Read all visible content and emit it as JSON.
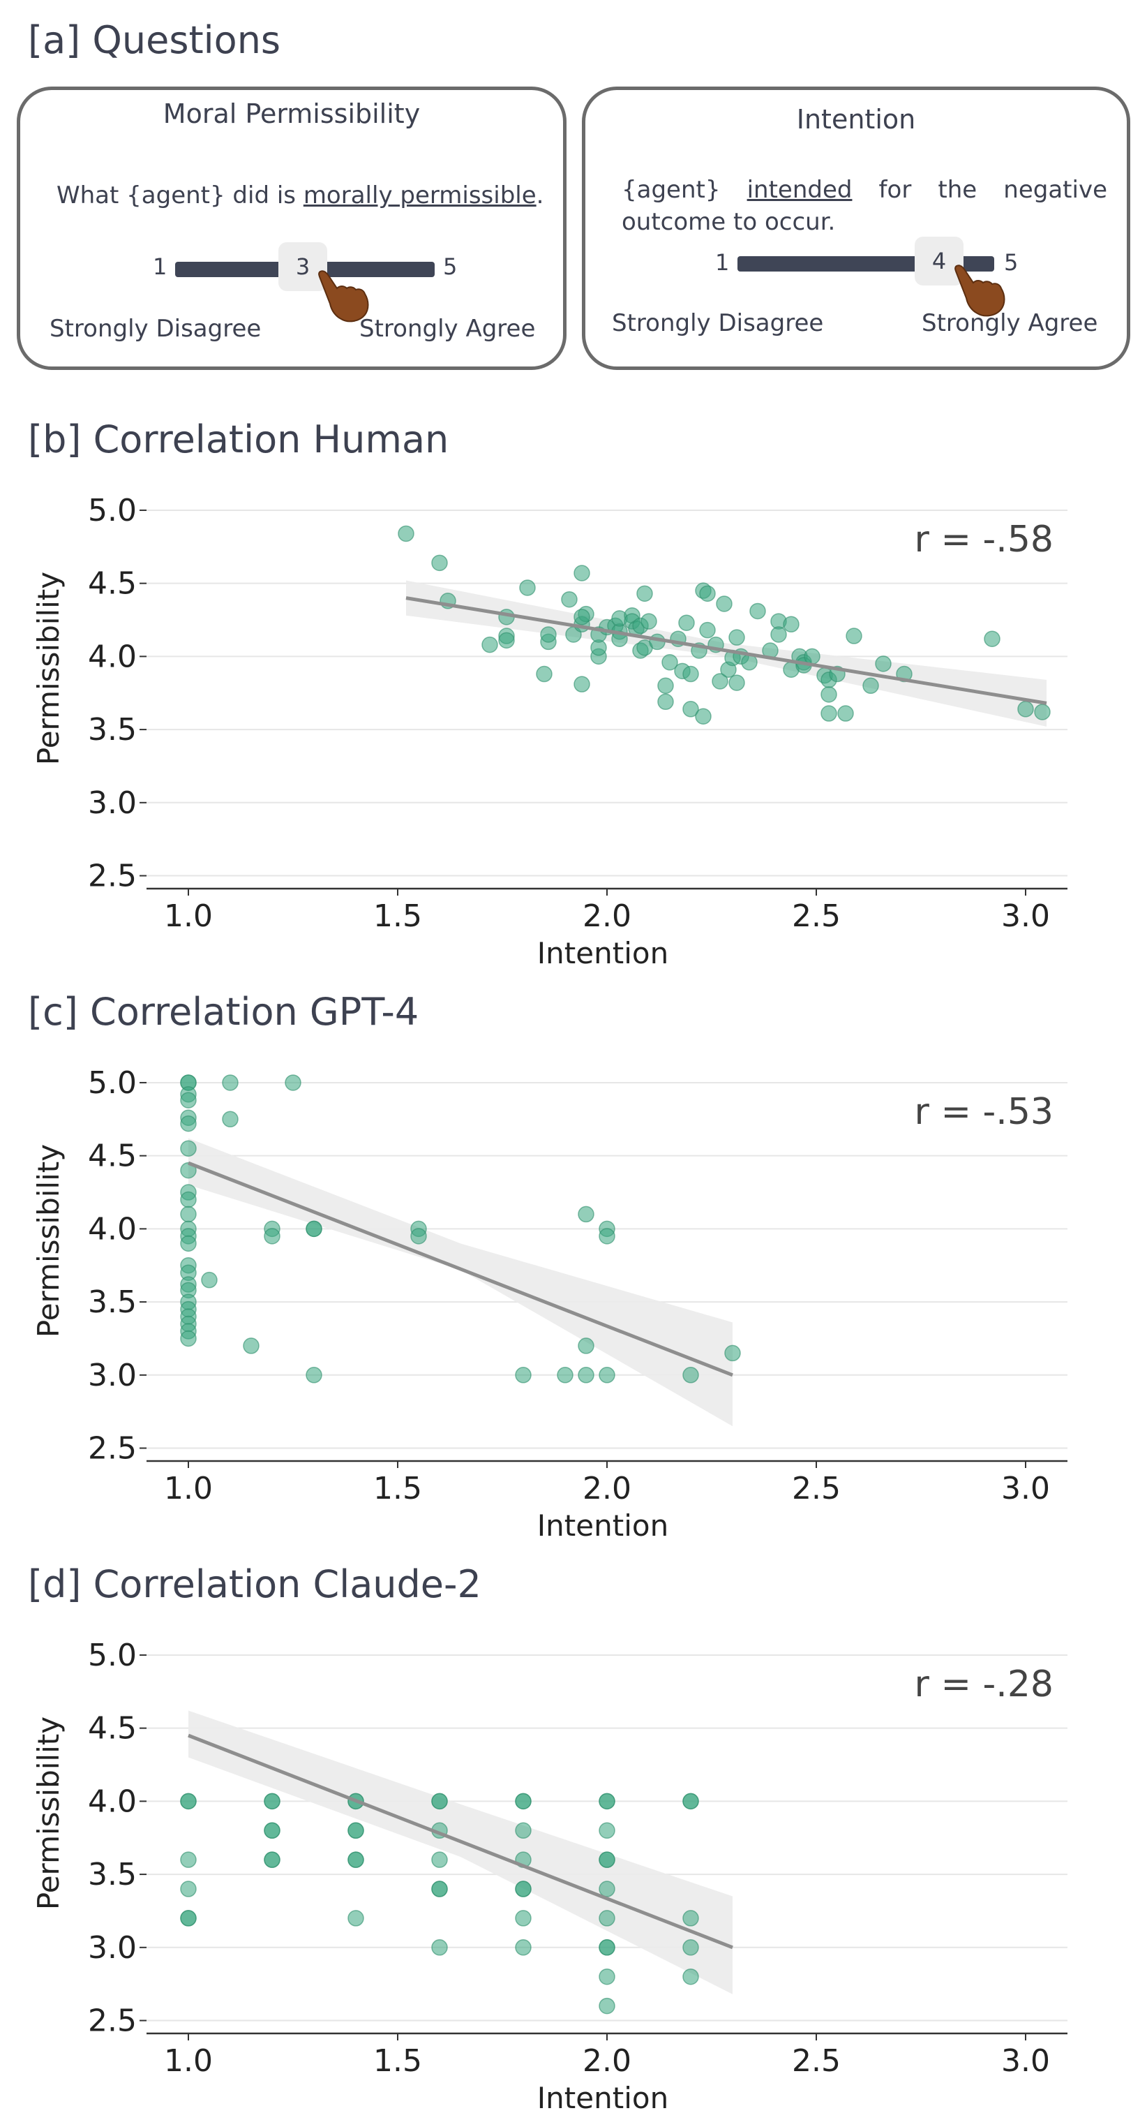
{
  "sections": {
    "a": "[a] Questions",
    "b": "[b] Correlation Human",
    "c": "[c] Correlation GPT-4",
    "d": "[d] Correlation Claude-2"
  },
  "questions": {
    "moral": {
      "title": "Moral Permissibility",
      "text_before": "What {agent} did is ",
      "text_underlined": "morally permissible",
      "text_after": ".",
      "scale_min": "1",
      "scale_max": "5",
      "selected": "3",
      "selected_value": 3,
      "left_anchor": "Strongly Disagree",
      "right_anchor": "Strongly Agree"
    },
    "intention": {
      "title": "Intention",
      "text_before": "{agent} ",
      "text_underlined": "intended",
      "text_after": " for the negative outcome to occur.",
      "scale_min": "1",
      "scale_max": "5",
      "selected": "4",
      "selected_value": 4,
      "left_anchor": "Strongly Disagree",
      "right_anchor": "Strongly Agree"
    }
  },
  "chart_data": [
    {
      "id": "human",
      "type": "scatter",
      "title": "",
      "xlabel": "Intention",
      "ylabel": "Permissibility",
      "xlim": [
        0.9,
        3.1
      ],
      "ylim": [
        2.45,
        5.1
      ],
      "xticks": [
        "1.0",
        "1.5",
        "2.0",
        "2.5",
        "3.0"
      ],
      "yticks": [
        "2.5",
        "3.0",
        "3.5",
        "4.0",
        "4.5",
        "5.0"
      ],
      "annotation": "r = -.58",
      "fit": {
        "x": [
          1.52,
          3.05
        ],
        "y": [
          4.4,
          3.68
        ],
        "ci_start": [
          4.28,
          4.52
        ],
        "ci_mid": [
          4.0,
          4.09
        ],
        "ci_end": [
          3.52,
          3.84
        ]
      },
      "points": [
        [
          1.52,
          4.84
        ],
        [
          1.6,
          4.64
        ],
        [
          1.62,
          4.38
        ],
        [
          1.72,
          4.08
        ],
        [
          1.76,
          4.14
        ],
        [
          1.76,
          4.11
        ],
        [
          1.76,
          4.27
        ],
        [
          1.81,
          4.47
        ],
        [
          1.85,
          3.88
        ],
        [
          1.86,
          4.1
        ],
        [
          1.86,
          4.15
        ],
        [
          1.91,
          4.39
        ],
        [
          1.92,
          4.15
        ],
        [
          1.94,
          4.57
        ],
        [
          1.94,
          4.22
        ],
        [
          1.95,
          4.29
        ],
        [
          1.94,
          4.27
        ],
        [
          1.94,
          3.81
        ],
        [
          1.98,
          4.0
        ],
        [
          1.98,
          4.06
        ],
        [
          1.98,
          4.15
        ],
        [
          2.0,
          4.2
        ],
        [
          2.02,
          4.21
        ],
        [
          2.03,
          4.17
        ],
        [
          2.03,
          4.12
        ],
        [
          2.03,
          4.26
        ],
        [
          2.06,
          4.28
        ],
        [
          2.06,
          4.24
        ],
        [
          2.07,
          4.19
        ],
        [
          2.08,
          4.21
        ],
        [
          2.08,
          4.04
        ],
        [
          2.09,
          4.06
        ],
        [
          2.09,
          4.43
        ],
        [
          2.1,
          4.24
        ],
        [
          2.12,
          4.1
        ],
        [
          2.14,
          3.8
        ],
        [
          2.14,
          3.69
        ],
        [
          2.15,
          3.96
        ],
        [
          2.17,
          4.12
        ],
        [
          2.18,
          3.9
        ],
        [
          2.19,
          4.23
        ],
        [
          2.2,
          3.64
        ],
        [
          2.2,
          3.88
        ],
        [
          2.22,
          4.04
        ],
        [
          2.23,
          4.45
        ],
        [
          2.23,
          3.59
        ],
        [
          2.24,
          4.43
        ],
        [
          2.24,
          4.18
        ],
        [
          2.26,
          4.08
        ],
        [
          2.27,
          3.83
        ],
        [
          2.28,
          4.36
        ],
        [
          2.29,
          3.91
        ],
        [
          2.3,
          3.99
        ],
        [
          2.31,
          3.82
        ],
        [
          2.31,
          4.13
        ],
        [
          2.32,
          4.0
        ],
        [
          2.34,
          3.96
        ],
        [
          2.36,
          4.31
        ],
        [
          2.39,
          4.04
        ],
        [
          2.41,
          4.24
        ],
        [
          2.41,
          4.15
        ],
        [
          2.44,
          3.91
        ],
        [
          2.44,
          4.22
        ],
        [
          2.46,
          4.0
        ],
        [
          2.47,
          3.96
        ],
        [
          2.47,
          3.94
        ],
        [
          2.49,
          4.0
        ],
        [
          2.52,
          3.87
        ],
        [
          2.53,
          3.84
        ],
        [
          2.53,
          3.74
        ],
        [
          2.53,
          3.61
        ],
        [
          2.55,
          3.88
        ],
        [
          2.57,
          3.61
        ],
        [
          2.59,
          4.14
        ],
        [
          2.63,
          3.8
        ],
        [
          2.66,
          3.95
        ],
        [
          2.71,
          3.88
        ],
        [
          2.92,
          4.12
        ],
        [
          3.0,
          3.64
        ],
        [
          3.04,
          3.62
        ]
      ]
    },
    {
      "id": "gpt4",
      "type": "scatter",
      "title": "",
      "xlabel": "Intention",
      "ylabel": "Permissibility",
      "xlim": [
        0.9,
        3.1
      ],
      "ylim": [
        2.45,
        5.1
      ],
      "xticks": [
        "1.0",
        "1.5",
        "2.0",
        "2.5",
        "3.0"
      ],
      "yticks": [
        "2.5",
        "3.0",
        "3.5",
        "4.0",
        "4.5",
        "5.0"
      ],
      "annotation": "r = -.53",
      "fit": {
        "x": [
          1.0,
          2.3
        ],
        "y": [
          4.45,
          3.0
        ],
        "ci_start": [
          4.3,
          4.62
        ],
        "ci_mid": [
          3.72,
          3.9
        ],
        "ci_end": [
          2.65,
          3.36
        ]
      },
      "points": [
        [
          1.0,
          5.0
        ],
        [
          1.0,
          5.0
        ],
        [
          1.0,
          4.92
        ],
        [
          1.0,
          4.88
        ],
        [
          1.0,
          4.76
        ],
        [
          1.0,
          4.72
        ],
        [
          1.0,
          4.55
        ],
        [
          1.0,
          4.4
        ],
        [
          1.0,
          4.25
        ],
        [
          1.0,
          4.2
        ],
        [
          1.0,
          4.1
        ],
        [
          1.0,
          4.0
        ],
        [
          1.0,
          3.95
        ],
        [
          1.0,
          3.9
        ],
        [
          1.0,
          3.75
        ],
        [
          1.0,
          3.7
        ],
        [
          1.0,
          3.62
        ],
        [
          1.0,
          3.58
        ],
        [
          1.0,
          3.5
        ],
        [
          1.0,
          3.45
        ],
        [
          1.0,
          3.4
        ],
        [
          1.0,
          3.35
        ],
        [
          1.0,
          3.3
        ],
        [
          1.0,
          3.25
        ],
        [
          1.05,
          3.65
        ],
        [
          1.1,
          5.0
        ],
        [
          1.1,
          4.75
        ],
        [
          1.15,
          3.2
        ],
        [
          1.2,
          4.0
        ],
        [
          1.2,
          3.95
        ],
        [
          1.25,
          5.0
        ],
        [
          1.3,
          4.0
        ],
        [
          1.3,
          4.0
        ],
        [
          1.3,
          3.0
        ],
        [
          1.55,
          4.0
        ],
        [
          1.55,
          3.95
        ],
        [
          1.8,
          3.0
        ],
        [
          1.9,
          3.0
        ],
        [
          1.95,
          4.1
        ],
        [
          1.95,
          3.2
        ],
        [
          1.95,
          3.0
        ],
        [
          2.0,
          4.0
        ],
        [
          2.0,
          3.95
        ],
        [
          2.0,
          3.0
        ],
        [
          2.2,
          3.0
        ],
        [
          2.3,
          3.15
        ]
      ]
    },
    {
      "id": "claude2",
      "type": "scatter",
      "title": "",
      "xlabel": "Intention",
      "ylabel": "Permissibility",
      "xlim": [
        0.9,
        3.1
      ],
      "ylim": [
        2.45,
        5.1
      ],
      "xticks": [
        "1.0",
        "1.5",
        "2.0",
        "2.5",
        "3.0"
      ],
      "yticks": [
        "2.5",
        "3.0",
        "3.5",
        "4.0",
        "4.5",
        "5.0"
      ],
      "annotation": "r = -.28",
      "fit": {
        "x": [
          1.0,
          2.3
        ],
        "y": [
          4.45,
          3.0
        ],
        "ci_start": [
          4.3,
          4.62
        ],
        "ci_mid": [
          3.62,
          3.98
        ],
        "ci_end": [
          2.68,
          3.35
        ]
      },
      "points": [
        [
          1.0,
          4.0
        ],
        [
          1.0,
          4.0
        ],
        [
          1.0,
          3.6
        ],
        [
          1.0,
          3.4
        ],
        [
          1.0,
          3.2
        ],
        [
          1.0,
          3.2
        ],
        [
          1.2,
          4.0
        ],
        [
          1.2,
          4.0
        ],
        [
          1.2,
          3.8
        ],
        [
          1.2,
          3.8
        ],
        [
          1.2,
          3.6
        ],
        [
          1.2,
          3.6
        ],
        [
          1.4,
          4.0
        ],
        [
          1.4,
          4.0
        ],
        [
          1.4,
          3.8
        ],
        [
          1.4,
          3.8
        ],
        [
          1.4,
          3.6
        ],
        [
          1.4,
          3.6
        ],
        [
          1.4,
          3.2
        ],
        [
          1.6,
          4.0
        ],
        [
          1.6,
          4.0
        ],
        [
          1.6,
          3.8
        ],
        [
          1.6,
          3.6
        ],
        [
          1.6,
          3.4
        ],
        [
          1.6,
          3.4
        ],
        [
          1.6,
          3.0
        ],
        [
          1.8,
          4.0
        ],
        [
          1.8,
          4.0
        ],
        [
          1.8,
          3.8
        ],
        [
          1.8,
          3.6
        ],
        [
          1.8,
          3.4
        ],
        [
          1.8,
          3.4
        ],
        [
          1.8,
          3.2
        ],
        [
          1.8,
          3.0
        ],
        [
          2.0,
          4.0
        ],
        [
          2.0,
          4.0
        ],
        [
          2.0,
          3.8
        ],
        [
          2.0,
          3.6
        ],
        [
          2.0,
          3.6
        ],
        [
          2.0,
          3.4
        ],
        [
          2.0,
          3.2
        ],
        [
          2.0,
          3.0
        ],
        [
          2.0,
          3.0
        ],
        [
          2.0,
          2.8
        ],
        [
          2.0,
          2.6
        ],
        [
          2.2,
          4.0
        ],
        [
          2.2,
          4.0
        ],
        [
          2.2,
          3.2
        ],
        [
          2.2,
          3.0
        ],
        [
          2.2,
          2.8
        ]
      ]
    }
  ]
}
